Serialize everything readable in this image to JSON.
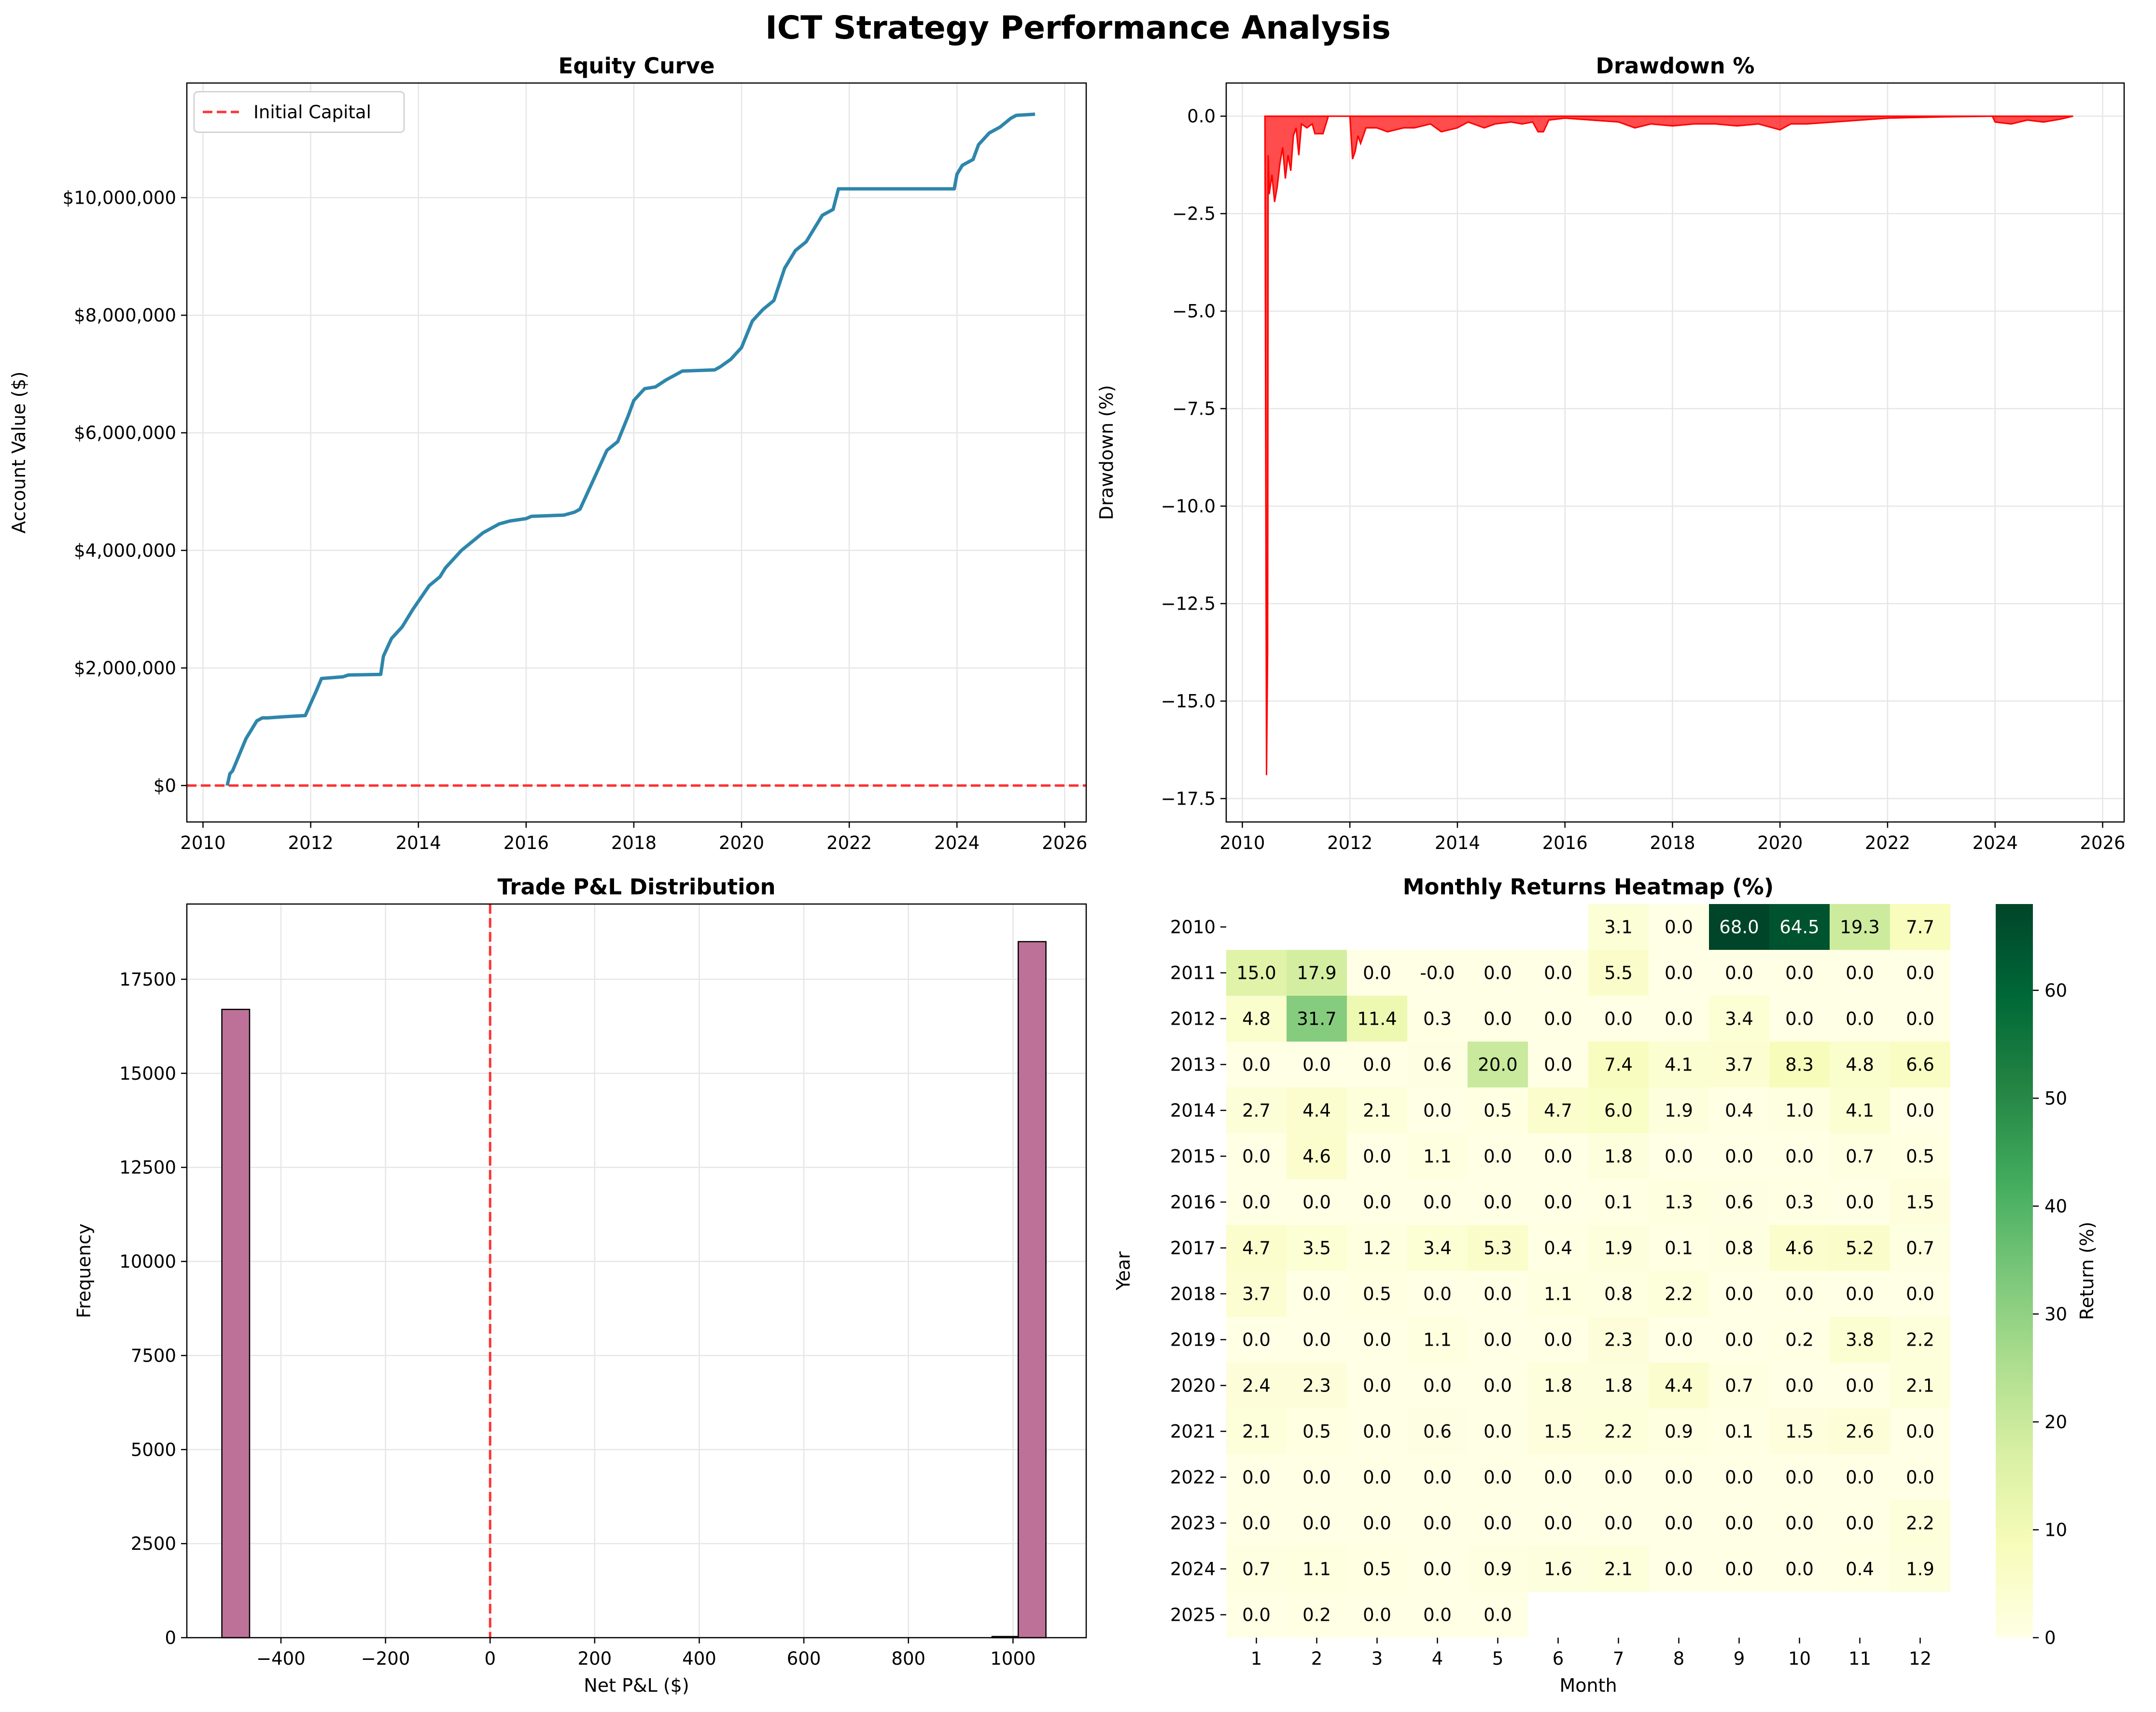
{
  "suptitle": "ICT Strategy Performance Analysis",
  "chart_data": [
    {
      "id": "equity",
      "type": "line",
      "title": "Equity Curve",
      "xlabel": "",
      "ylabel": "Account Value ($)",
      "xlim": [
        2009.7,
        2026.4
      ],
      "ylim": [
        -620000,
        11950000
      ],
      "xticks": [
        2010,
        2012,
        2014,
        2016,
        2018,
        2020,
        2022,
        2024,
        2026
      ],
      "yticks": [
        0,
        2000000,
        4000000,
        6000000,
        8000000,
        10000000
      ],
      "ytick_labels": [
        "$0",
        "$2,000,000",
        "$4,000,000",
        "$6,000,000",
        "$8,000,000",
        "$10,000,000"
      ],
      "grid": true,
      "legend_position": "upper-left",
      "line_color": "#2e86ab",
      "series": [
        {
          "name": "",
          "x": [
            2010.45,
            2010.5,
            2010.55,
            2010.8,
            2010.9,
            2011.0,
            2011.1,
            2011.2,
            2011.5,
            2011.9,
            2012.05,
            2012.1,
            2012.2,
            2012.6,
            2012.7,
            2013.3,
            2013.35,
            2013.5,
            2013.7,
            2013.9,
            2014.2,
            2014.4,
            2014.5,
            2014.8,
            2015.0,
            2015.2,
            2015.5,
            2015.7,
            2016.0,
            2016.1,
            2016.7,
            2016.9,
            2017.0,
            2017.2,
            2017.5,
            2017.7,
            2017.9,
            2018.0,
            2018.2,
            2018.4,
            2018.6,
            2018.9,
            2019.5,
            2019.6,
            2019.8,
            2020.0,
            2020.2,
            2020.4,
            2020.6,
            2020.8,
            2021.0,
            2021.2,
            2021.5,
            2021.7,
            2021.8,
            2021.9,
            2022.5,
            2023.95,
            2024.0,
            2024.1,
            2024.3,
            2024.4,
            2024.6,
            2024.8,
            2025.0,
            2025.1,
            2025.45
          ],
          "y": [
            0,
            200000,
            250000,
            800000,
            950000,
            1100000,
            1150000,
            1150000,
            1170000,
            1190000,
            1500000,
            1600000,
            1820000,
            1850000,
            1880000,
            1890000,
            2200000,
            2500000,
            2700000,
            3000000,
            3400000,
            3550000,
            3700000,
            4000000,
            4150000,
            4300000,
            4450000,
            4500000,
            4540000,
            4580000,
            4600000,
            4650000,
            4700000,
            5100000,
            5700000,
            5850000,
            6300000,
            6550000,
            6750000,
            6780000,
            6900000,
            7050000,
            7070000,
            7120000,
            7250000,
            7450000,
            7900000,
            8100000,
            8250000,
            8800000,
            9100000,
            9250000,
            9700000,
            9800000,
            10150000,
            10150000,
            10150000,
            10150000,
            10400000,
            10550000,
            10650000,
            10900000,
            11100000,
            11200000,
            11350000,
            11400000,
            11420000
          ]
        }
      ],
      "hline": {
        "y": 0,
        "label": "Initial Capital",
        "color": "#ff3333"
      }
    },
    {
      "id": "drawdown",
      "type": "area",
      "title": "Drawdown %",
      "xlabel": "",
      "ylabel": "Drawdown (%)",
      "xlim": [
        2009.7,
        2026.4
      ],
      "ylim": [
        -18.1,
        0.85
      ],
      "xticks": [
        2010,
        2012,
        2014,
        2016,
        2018,
        2020,
        2022,
        2024,
        2026
      ],
      "yticks": [
        0,
        -2.5,
        -5,
        -7.5,
        -10,
        -12.5,
        -15,
        -17.5
      ],
      "ytick_labels": [
        "0.0",
        "−2.5",
        "−5.0",
        "−7.5",
        "−10.0",
        "−12.5",
        "−15.0",
        "−17.5"
      ],
      "grid": true,
      "color": "#ff0000",
      "x": [
        2010.42,
        2010.45,
        2010.47,
        2010.48,
        2010.5,
        2010.55,
        2010.6,
        2010.65,
        2010.7,
        2010.75,
        2010.8,
        2010.85,
        2010.9,
        2010.95,
        2011.0,
        2011.05,
        2011.1,
        2011.2,
        2011.3,
        2011.35,
        2011.4,
        2011.5,
        2011.6,
        2012.0,
        2012.05,
        2012.1,
        2012.15,
        2012.2,
        2012.3,
        2012.5,
        2012.7,
        2013.0,
        2013.2,
        2013.5,
        2013.7,
        2014.0,
        2014.2,
        2014.5,
        2014.7,
        2015.0,
        2015.2,
        2015.4,
        2015.5,
        2015.6,
        2015.7,
        2016.0,
        2016.5,
        2017.0,
        2017.3,
        2017.6,
        2018.0,
        2018.4,
        2018.8,
        2019.2,
        2019.6,
        2020.0,
        2020.2,
        2020.5,
        2021.0,
        2021.5,
        2022.0,
        2023.0,
        2023.95,
        2024.0,
        2024.3,
        2024.6,
        2024.9,
        2025.2,
        2025.45
      ],
      "y": [
        0,
        -16.9,
        -13.7,
        -1.0,
        -2.0,
        -1.5,
        -2.2,
        -1.8,
        -1.2,
        -0.8,
        -1.6,
        -1.0,
        -1.4,
        -0.5,
        -0.3,
        -1.0,
        -0.2,
        -0.3,
        -0.2,
        -0.45,
        -0.45,
        -0.45,
        0,
        0,
        -1.1,
        -0.9,
        -0.5,
        -0.7,
        -0.3,
        -0.3,
        -0.4,
        -0.3,
        -0.3,
        -0.2,
        -0.4,
        -0.3,
        -0.15,
        -0.3,
        -0.2,
        -0.15,
        -0.2,
        -0.15,
        -0.4,
        -0.4,
        -0.1,
        -0.05,
        -0.1,
        -0.15,
        -0.3,
        -0.2,
        -0.25,
        -0.2,
        -0.2,
        -0.25,
        -0.2,
        -0.35,
        -0.2,
        -0.2,
        -0.15,
        -0.1,
        -0.05,
        -0.02,
        0,
        -0.15,
        -0.2,
        -0.1,
        -0.15,
        -0.08,
        0
      ]
    },
    {
      "id": "histogram",
      "type": "bar",
      "title": "Trade P&L Distribution",
      "xlabel": "Net P&L ($)",
      "ylabel": "Frequency",
      "xlim": [
        -580,
        1140
      ],
      "ylim": [
        0,
        19500
      ],
      "xticks": [
        -400,
        -200,
        0,
        200,
        400,
        600,
        800,
        1000
      ],
      "xtick_labels": [
        "−400",
        "−200",
        "0",
        "200",
        "400",
        "600",
        "800",
        "1000"
      ],
      "yticks": [
        0,
        2500,
        5000,
        7500,
        10000,
        12500,
        15000,
        17500
      ],
      "grid": true,
      "bar_color": "#a23b72",
      "bins": [
        {
          "x0": -513,
          "x1": -460,
          "count": 16700
        },
        {
          "x0": 960,
          "x1": 1010,
          "count": 30
        },
        {
          "x0": 1010,
          "x1": 1063,
          "count": 18500
        }
      ],
      "vline": {
        "x": 0,
        "color": "#ff3333"
      }
    },
    {
      "id": "heatmap",
      "type": "heatmap",
      "title": "Monthly Returns Heatmap (%)",
      "xlabel": "Month",
      "ylabel": "Year",
      "colorbar_label": "Return (%)",
      "colorbar_ticks": [
        0,
        10,
        20,
        30,
        40,
        50,
        60
      ],
      "vmin": 0,
      "vmax": 68,
      "colormap": "YlGn",
      "columns": [
        "1",
        "2",
        "3",
        "4",
        "5",
        "6",
        "7",
        "8",
        "9",
        "10",
        "11",
        "12"
      ],
      "rows": [
        "2010",
        "2011",
        "2012",
        "2013",
        "2014",
        "2015",
        "2016",
        "2017",
        "2018",
        "2019",
        "2020",
        "2021",
        "2022",
        "2023",
        "2024",
        "2025"
      ],
      "values": [
        [
          null,
          null,
          null,
          null,
          null,
          null,
          "3.1",
          "0.0",
          "68.0",
          "64.5",
          "19.3",
          "7.7"
        ],
        [
          "15.0",
          "17.9",
          "0.0",
          "-0.0",
          "0.0",
          "0.0",
          "5.5",
          "0.0",
          "0.0",
          "0.0",
          "0.0",
          "0.0"
        ],
        [
          "4.8",
          "31.7",
          "11.4",
          "0.3",
          "0.0",
          "0.0",
          "0.0",
          "0.0",
          "3.4",
          "0.0",
          "0.0",
          "0.0"
        ],
        [
          "0.0",
          "0.0",
          "0.0",
          "0.6",
          "20.0",
          "0.0",
          "7.4",
          "4.1",
          "3.7",
          "8.3",
          "4.8",
          "6.6"
        ],
        [
          "2.7",
          "4.4",
          "2.1",
          "0.0",
          "0.5",
          "4.7",
          "6.0",
          "1.9",
          "0.4",
          "1.0",
          "4.1",
          "0.0"
        ],
        [
          "0.0",
          "4.6",
          "0.0",
          "1.1",
          "0.0",
          "0.0",
          "1.8",
          "0.0",
          "0.0",
          "0.0",
          "0.7",
          "0.5"
        ],
        [
          "0.0",
          "0.0",
          "0.0",
          "0.0",
          "0.0",
          "0.0",
          "0.1",
          "1.3",
          "0.6",
          "0.3",
          "0.0",
          "1.5"
        ],
        [
          "4.7",
          "3.5",
          "1.2",
          "3.4",
          "5.3",
          "0.4",
          "1.9",
          "0.1",
          "0.8",
          "4.6",
          "5.2",
          "0.7"
        ],
        [
          "3.7",
          "0.0",
          "0.5",
          "0.0",
          "0.0",
          "1.1",
          "0.8",
          "2.2",
          "0.0",
          "0.0",
          "0.0",
          "0.0"
        ],
        [
          "0.0",
          "0.0",
          "0.0",
          "1.1",
          "0.0",
          "0.0",
          "2.3",
          "0.0",
          "0.0",
          "0.2",
          "3.8",
          "2.2"
        ],
        [
          "2.4",
          "2.3",
          "0.0",
          "0.0",
          "0.0",
          "1.8",
          "1.8",
          "4.4",
          "0.7",
          "0.0",
          "0.0",
          "2.1"
        ],
        [
          "2.1",
          "0.5",
          "0.0",
          "0.6",
          "0.0",
          "1.5",
          "2.2",
          "0.9",
          "0.1",
          "1.5",
          "2.6",
          "0.0"
        ],
        [
          "0.0",
          "0.0",
          "0.0",
          "0.0",
          "0.0",
          "0.0",
          "0.0",
          "0.0",
          "0.0",
          "0.0",
          "0.0",
          "0.0"
        ],
        [
          "0.0",
          "0.0",
          "0.0",
          "0.0",
          "0.0",
          "0.0",
          "0.0",
          "0.0",
          "0.0",
          "0.0",
          "0.0",
          "2.2"
        ],
        [
          "0.7",
          "1.1",
          "0.5",
          "0.0",
          "0.9",
          "1.6",
          "2.1",
          "0.0",
          "0.0",
          "0.0",
          "0.4",
          "1.9"
        ],
        [
          "0.0",
          "0.2",
          "0.0",
          "0.0",
          "0.0",
          null,
          null,
          null,
          null,
          null,
          null,
          null
        ]
      ]
    }
  ]
}
